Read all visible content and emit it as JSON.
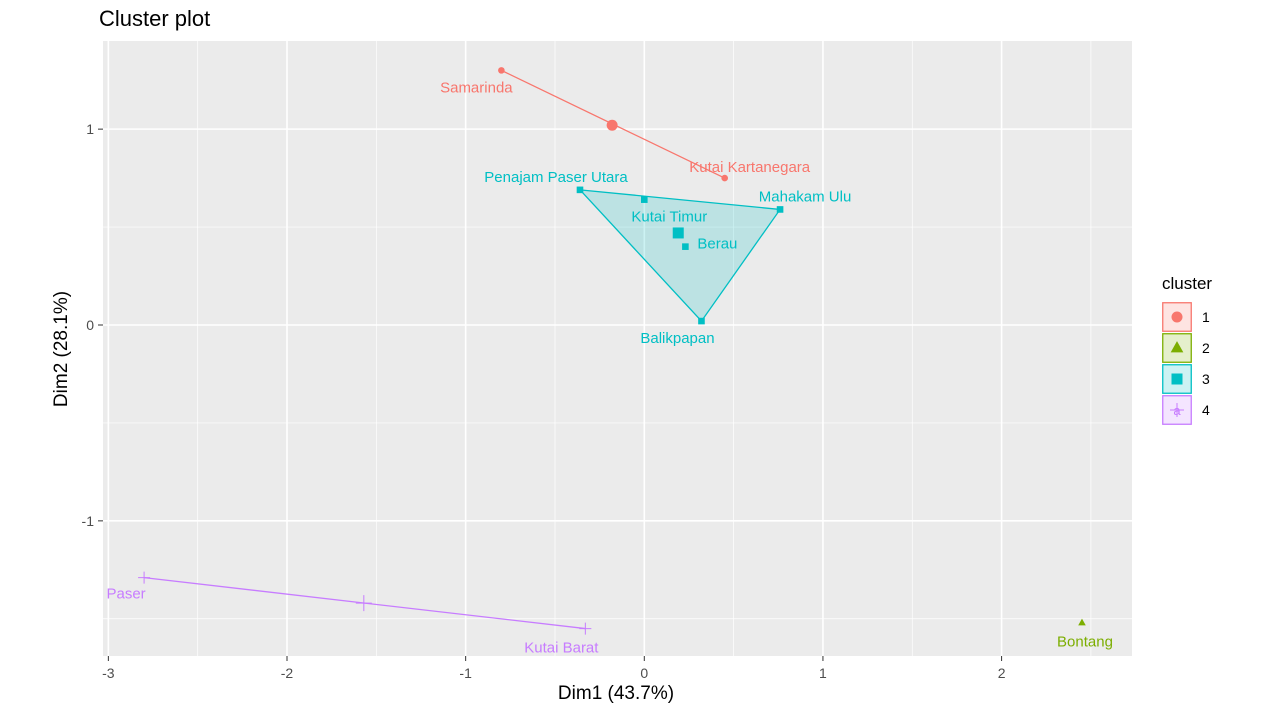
{
  "chart_data": {
    "type": "scatter",
    "title": "Cluster plot",
    "xlabel": "Dim1 (43.7%)",
    "ylabel": "Dim2 (28.1%)",
    "xlim": [
      -3.03,
      2.73
    ],
    "ylim": [
      -1.69,
      1.45
    ],
    "x_ticks": [
      -3,
      -2,
      -1,
      0,
      1,
      2
    ],
    "x_tick_labels": [
      "-3",
      "-2",
      "-1",
      "0",
      "1",
      "2"
    ],
    "y_ticks": [
      -1,
      0,
      1
    ],
    "y_tick_labels": [
      "-1",
      "0",
      "1"
    ],
    "grid": true,
    "legend_title": "cluster",
    "legend_position": "right",
    "clusters": [
      {
        "name": "1",
        "color": "#F8766D",
        "shape": "circle",
        "points": [
          {
            "label": "Samarinda",
            "x": -0.8,
            "y": 1.3
          },
          {
            "label": "Kutai Kartanegara",
            "x": 0.45,
            "y": 0.75
          }
        ],
        "centroid": {
          "x": -0.18,
          "y": 1.02
        }
      },
      {
        "name": "2",
        "color": "#7CAE00",
        "shape": "triangle",
        "points": [
          {
            "label": "Bontang",
            "x": 2.45,
            "y": -1.52
          }
        ],
        "centroid": {
          "x": 2.45,
          "y": -1.52
        }
      },
      {
        "name": "3",
        "color": "#00BFC4",
        "shape": "square",
        "points": [
          {
            "label": "Penajam Paser Utara",
            "x": -0.36,
            "y": 0.69
          },
          {
            "label": "Kutai Timur",
            "x": 0.0,
            "y": 0.64
          },
          {
            "label": "Mahakam Ulu",
            "x": 0.76,
            "y": 0.59
          },
          {
            "label": "Berau",
            "x": 0.23,
            "y": 0.4
          },
          {
            "label": "Balikpapan",
            "x": 0.32,
            "y": 0.02
          }
        ],
        "centroid": {
          "x": 0.19,
          "y": 0.47
        }
      },
      {
        "name": "4",
        "color": "#C77CFF",
        "shape": "cross",
        "points": [
          {
            "label": "Paser",
            "x": -2.8,
            "y": -1.29
          },
          {
            "label": "Kutai Barat",
            "x": -0.33,
            "y": -1.55
          }
        ],
        "centroid": {
          "x": -1.57,
          "y": -1.42
        }
      }
    ]
  }
}
